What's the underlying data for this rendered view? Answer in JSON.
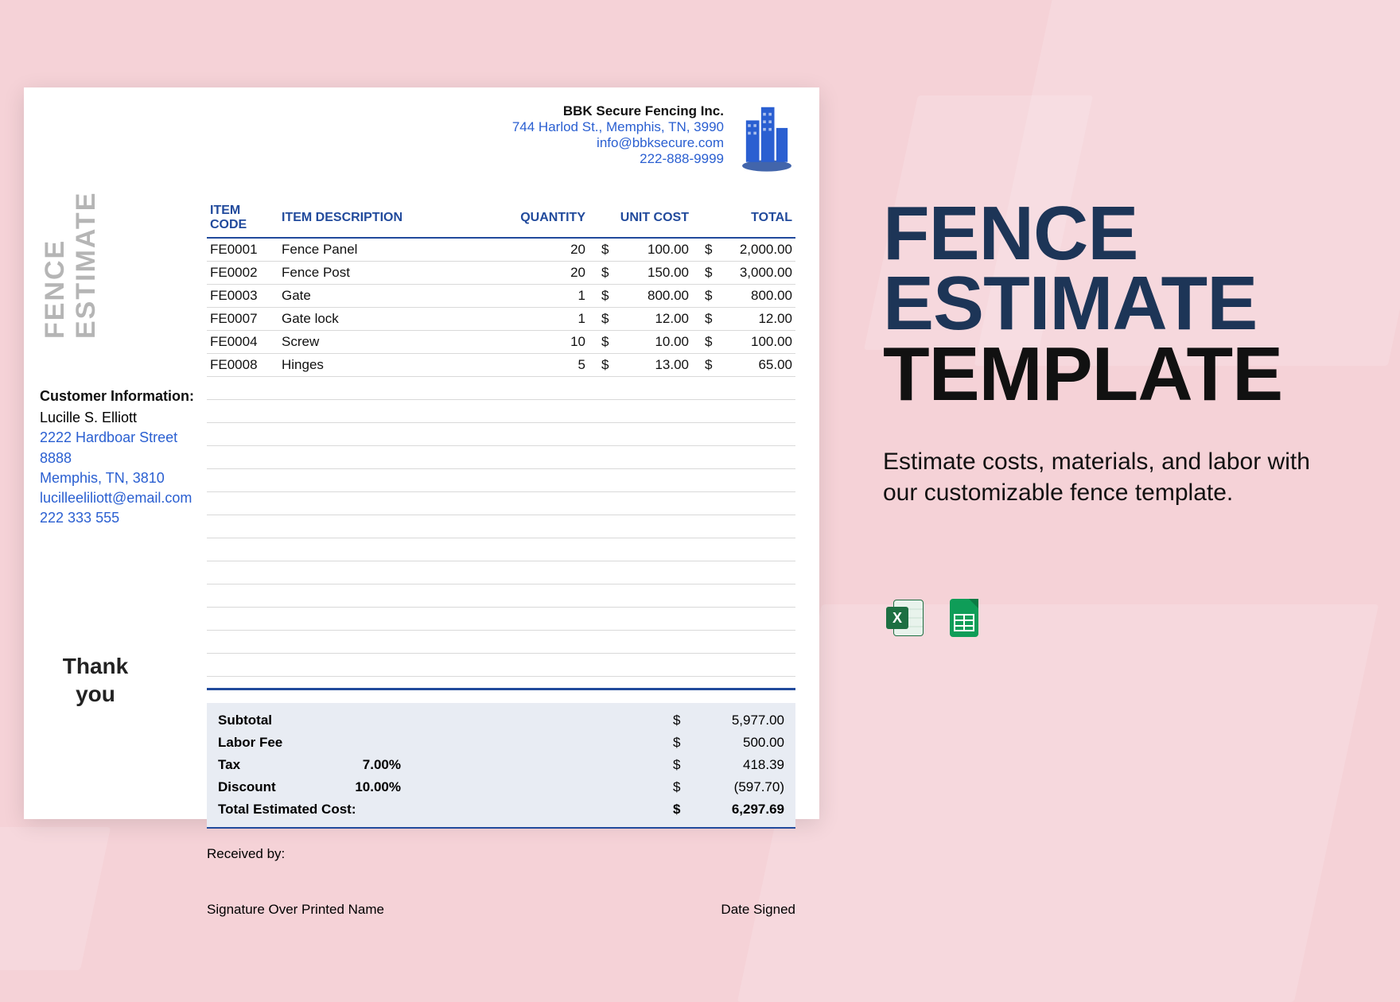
{
  "page": {
    "bg_color": "#f5d2d7",
    "doc_bg": "#ffffff",
    "accent_blue": "#214a9c",
    "link_blue": "#2a5fd1"
  },
  "document": {
    "vertical_title": "FENCE ESTIMATE",
    "company": {
      "name": "BBK Secure Fencing Inc.",
      "address": "744 Harlod St., Memphis, TN, 3990",
      "email": "info@bbksecure.com",
      "phone": "222-888-9999"
    },
    "table": {
      "headers": {
        "code": "ITEM CODE",
        "desc": "ITEM DESCRIPTION",
        "qty": "QUANTITY",
        "cost": "UNIT COST",
        "total": "TOTAL"
      },
      "rows": [
        {
          "code": "FE0001",
          "desc": "Fence Panel",
          "qty": "20",
          "cost": "100.00",
          "total": "2,000.00"
        },
        {
          "code": "FE0002",
          "desc": "Fence Post",
          "qty": "20",
          "cost": "150.00",
          "total": "3,000.00"
        },
        {
          "code": "FE0003",
          "desc": "Gate",
          "qty": "1",
          "cost": "800.00",
          "total": "800.00"
        },
        {
          "code": "FE0007",
          "desc": "Gate lock",
          "qty": "1",
          "cost": "12.00",
          "total": "12.00"
        },
        {
          "code": "FE0004",
          "desc": "Screw",
          "qty": "10",
          "cost": "10.00",
          "total": "100.00"
        },
        {
          "code": "FE0008",
          "desc": "Hinges",
          "qty": "5",
          "cost": "13.00",
          "total": "65.00"
        }
      ],
      "empty_row_count": 13
    },
    "customer": {
      "title": "Customer Information:",
      "name": "Lucille S. Elliott",
      "address1": "2222 Hardboar Street 8888",
      "address2": "Memphis, TN, 3810",
      "email": "lucilleeliliott@email.com",
      "phone": "222 333 555"
    },
    "summary": {
      "subtotal_label": "Subtotal",
      "subtotal": "5,977.00",
      "labor_label": "Labor Fee",
      "labor": "500.00",
      "tax_label": "Tax",
      "tax_pct": "7.00%",
      "tax": "418.39",
      "discount_label": "Discount",
      "discount_pct": "10.00%",
      "discount": "(597.70)",
      "total_label": "Total Estimated Cost:",
      "total": "6,297.69",
      "currency": "$"
    },
    "footer": {
      "received_by": "Received by:",
      "sig_label": "Signature Over Printed Name",
      "date_label": "Date Signed",
      "thanks": "Thank you"
    }
  },
  "panel": {
    "title_l1": "FENCE",
    "title_l2": "ESTIMATE",
    "title_l3": "TEMPLATE",
    "subtitle": "Estimate costs, materials, and labor with our customizable fence template.",
    "icons": [
      {
        "name": "excel-icon",
        "bg": "#1d6f42"
      },
      {
        "name": "sheets-icon",
        "bg": "#0f9d58"
      }
    ]
  }
}
